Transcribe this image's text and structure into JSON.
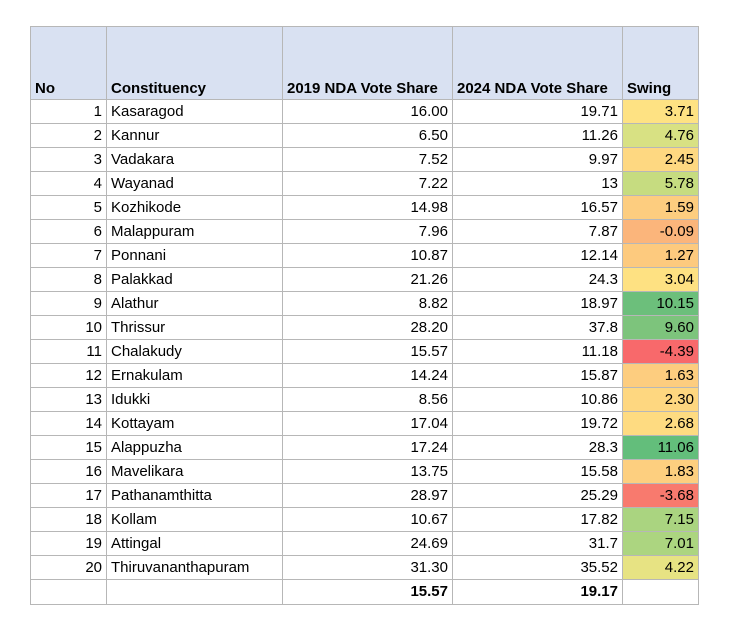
{
  "headers": [
    "No",
    "Constituency",
    "2019 NDA Vote Share",
    "2024 NDA Vote Share",
    "Swing"
  ],
  "rows": [
    {
      "no": "1",
      "name": "Kasaragod",
      "v2019": "16.00",
      "v2024": "19.71",
      "swing": "3.71",
      "color": "#fee283"
    },
    {
      "no": "2",
      "name": "Kannur",
      "v2019": "6.50",
      "v2024": "11.26",
      "swing": "4.76",
      "color": "#d8e183"
    },
    {
      "no": "3",
      "name": "Vadakara",
      "v2019": "7.52",
      "v2024": "9.97",
      "swing": "2.45",
      "color": "#fed881"
    },
    {
      "no": "4",
      "name": "Wayanad",
      "v2019": "7.22",
      "v2024": "13",
      "swing": "5.78",
      "color": "#c6dc80"
    },
    {
      "no": "5",
      "name": "Kozhikode",
      "v2019": "14.98",
      "v2024": "16.57",
      "swing": "1.59",
      "color": "#fdcd7f"
    },
    {
      "no": "6",
      "name": "Malappuram",
      "v2019": "7.96",
      "v2024": "7.87",
      "swing": "-0.09",
      "color": "#fbb57b"
    },
    {
      "no": "7",
      "name": "Ponnani",
      "v2019": "10.87",
      "v2024": "12.14",
      "swing": "1.27",
      "color": "#fdca7e"
    },
    {
      "no": "8",
      "name": "Palakkad",
      "v2019": "21.26",
      "v2024": "24.3",
      "swing": "3.04",
      "color": "#fee182"
    },
    {
      "no": "9",
      "name": "Alathur",
      "v2019": "8.82",
      "v2024": "18.97",
      "swing": "10.15",
      "color": "#6cbf7b"
    },
    {
      "no": "10",
      "name": "Thrissur",
      "v2019": "28.20",
      "v2024": "37.8",
      "swing": "9.60",
      "color": "#7dc47c"
    },
    {
      "no": "11",
      "name": "Chalakudy",
      "v2019": "15.57",
      "v2024": "11.18",
      "swing": "-4.39",
      "color": "#f8696b"
    },
    {
      "no": "12",
      "name": "Ernakulam",
      "v2019": "14.24",
      "v2024": "15.87",
      "swing": "1.63",
      "color": "#fdcd7f"
    },
    {
      "no": "13",
      "name": "Idukki",
      "v2019": "8.56",
      "v2024": "10.86",
      "swing": "2.30",
      "color": "#fed780"
    },
    {
      "no": "14",
      "name": "Kottayam",
      "v2019": "17.04",
      "v2024": "19.72",
      "swing": "2.68",
      "color": "#fedb81"
    },
    {
      "no": "15",
      "name": "Alappuzha",
      "v2019": "17.24",
      "v2024": "28.3",
      "swing": "11.06",
      "color": "#63be7b"
    },
    {
      "no": "16",
      "name": "Mavelikara",
      "v2019": "13.75",
      "v2024": "15.58",
      "swing": "1.83",
      "color": "#fdcf7f"
    },
    {
      "no": "17",
      "name": "Pathanamthitta",
      "v2019": "28.97",
      "v2024": "25.29",
      "swing": "-3.68",
      "color": "#f87a6e"
    },
    {
      "no": "18",
      "name": "Kollam",
      "v2019": "10.67",
      "v2024": "17.82",
      "swing": "7.15",
      "color": "#aad480"
    },
    {
      "no": "19",
      "name": "Attingal",
      "v2019": "24.69",
      "v2024": "31.7",
      "swing": "7.01",
      "color": "#acd580"
    },
    {
      "no": "20",
      "name": "Thiruvananthapuram",
      "v2019": "31.30",
      "v2024": "35.52",
      "swing": "4.22",
      "color": "#e7e383"
    }
  ],
  "totals": {
    "v2019": "15.57",
    "v2024": "19.17"
  }
}
